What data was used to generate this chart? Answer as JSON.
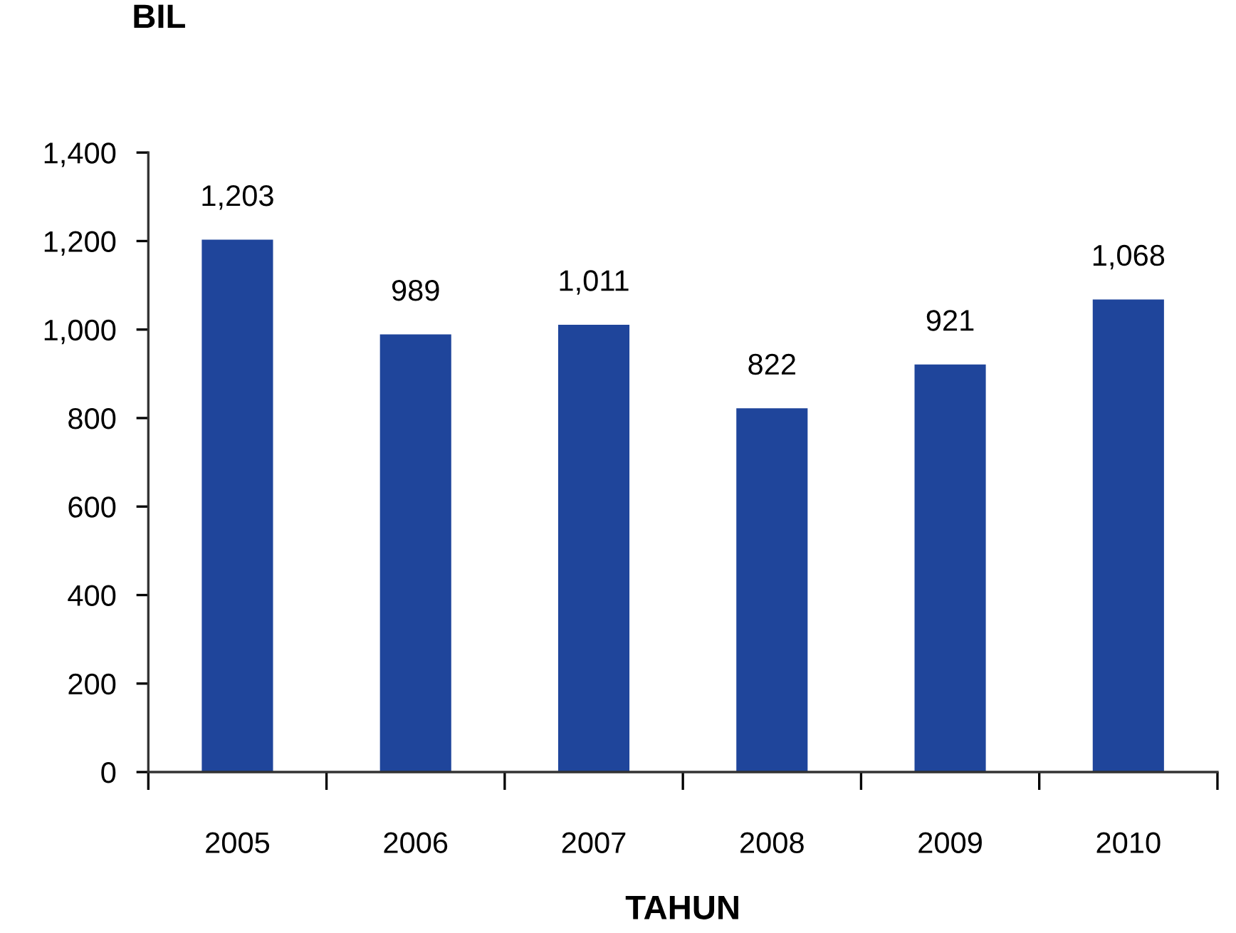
{
  "chart_data": {
    "type": "bar",
    "xlabel": "TAHUN",
    "ylabel": "BIL",
    "categories": [
      "2005",
      "2006",
      "2007",
      "2008",
      "2009",
      "2010"
    ],
    "values": [
      1203,
      989,
      1011,
      822,
      921,
      1068
    ],
    "value_labels": [
      "1,203",
      "989",
      "1,011",
      "822",
      "921",
      "1,068"
    ],
    "color": "#1f459b",
    "ylim": [
      0,
      1400
    ],
    "yticks": [
      0,
      200,
      400,
      600,
      800,
      {
        "value": 1000,
        "label": "1,000"
      },
      {
        "value": 1200,
        "label": "1,200"
      },
      {
        "value": 1400,
        "label": "1,400"
      }
    ],
    "grid": false
  }
}
